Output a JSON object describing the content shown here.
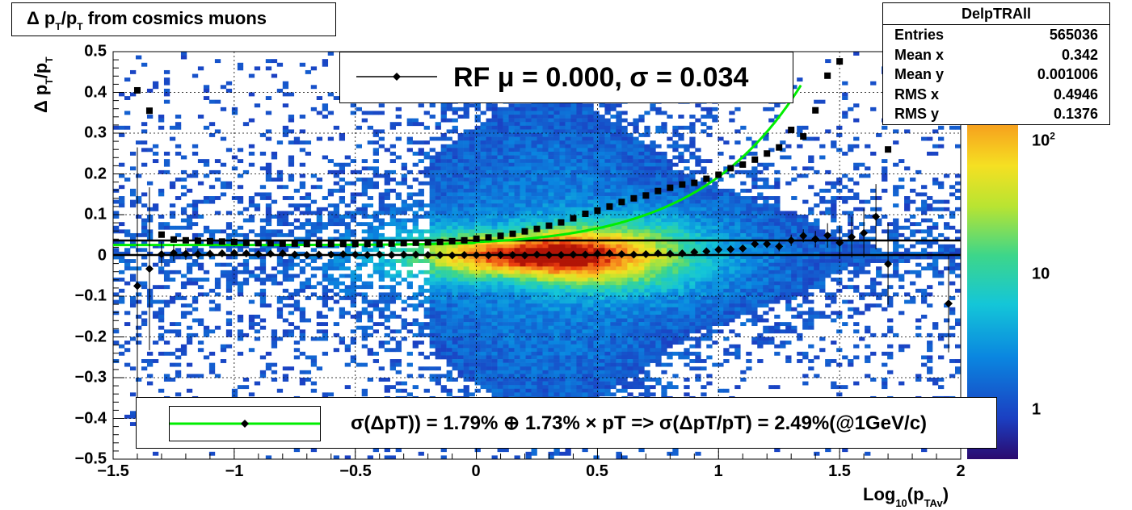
{
  "title": {
    "text_main": "Δ p",
    "sub1": "T",
    "slash": "/p",
    "sub2": "T",
    "rest": " from cosmics muons"
  },
  "stats": {
    "name": "DelpTRAll",
    "rows": [
      {
        "k": "Entries",
        "v": "565036"
      },
      {
        "k": "Mean x",
        "v": "0.342"
      },
      {
        "k": "Mean y",
        "v": "0.001006"
      },
      {
        "k": "RMS x",
        "v": "0.4946"
      },
      {
        "k": "RMS y",
        "v": "0.1376"
      }
    ]
  },
  "rf_legend": "RF μ =  0.000, σ =   0.034",
  "fit_legend": "σ(ΔpT)) =  1.79% ⊕  1.73% × pT => σ(ΔpT/pT) =  2.49%(@1GeV/c)",
  "axis": {
    "ylabel": {
      "a": "Δ p",
      "s1": "T",
      "b": "/p",
      "s2": "T"
    },
    "xlabel": {
      "a": "Log",
      "s1": "10",
      "b": "(p",
      "s2": "TAv",
      "c": ")"
    },
    "xticks": [
      "−1.5",
      "−1",
      "−0.5",
      "0",
      "0.5",
      "1",
      "1.5",
      "2"
    ],
    "yticks": [
      "0.5",
      "0.4",
      "0.3",
      "0.2",
      "0.1",
      "0",
      "−0.1",
      "−0.2",
      "−0.3",
      "−0.4",
      "−0.5"
    ],
    "zticks": [
      {
        "label": "10",
        "exp": "2"
      },
      {
        "label": "10",
        "exp": ""
      },
      {
        "label": "1",
        "exp": ""
      }
    ]
  },
  "colors": {
    "fit_curve": "#00ee00",
    "markers": "#000000",
    "lines": "#000000"
  },
  "chart_data": {
    "type": "heatmap",
    "title": "Δ pT/pT from cosmics muons",
    "xlabel": "Log10(pTAv)",
    "ylabel": "Δ pT/pT",
    "xlim": [
      -1.5,
      2.0
    ],
    "ylim": [
      -0.5,
      0.5
    ],
    "zscale": "log",
    "grid": true,
    "x": [
      -1.4,
      -1.35,
      -1.3,
      -1.25,
      -1.2,
      -1.15,
      -1.1,
      -1.05,
      -1.0,
      -0.95,
      -0.9,
      -0.85,
      -0.8,
      -0.75,
      -0.7,
      -0.65,
      -0.6,
      -0.55,
      -0.5,
      -0.45,
      -0.4,
      -0.35,
      -0.3,
      -0.25,
      -0.2,
      -0.15,
      -0.1,
      -0.05,
      0.0,
      0.05,
      0.1,
      0.15,
      0.2,
      0.25,
      0.3,
      0.35,
      0.4,
      0.45,
      0.5,
      0.55,
      0.6,
      0.65,
      0.7,
      0.75,
      0.8,
      0.85,
      0.9,
      0.95,
      1.0,
      1.05,
      1.1,
      1.15,
      1.2,
      1.25,
      1.3,
      1.35,
      1.4,
      1.45,
      1.5,
      1.55,
      1.6,
      1.65,
      1.7,
      1.75,
      1.8,
      1.85,
      1.9,
      1.95
    ],
    "series": [
      {
        "name": "mean",
        "values": [
          -0.075,
          -0.033,
          0.003,
          0.006,
          0.004,
          0.003,
          0.004,
          0.005,
          0.006,
          0.005,
          0.003,
          0.004,
          0.005,
          0.002,
          0.001,
          0.002,
          0.002,
          0.003,
          0.002,
          0.001,
          0.002,
          0.001,
          0.002,
          0.002,
          0.001,
          0.001,
          0.0,
          0.001,
          0.001,
          0.0,
          0.001,
          0.001,
          0.0,
          0.002,
          0.001,
          0.001,
          0.002,
          0.002,
          0.004,
          0.005,
          0.003,
          0.002,
          0.003,
          0.005,
          0.004,
          0.005,
          0.008,
          0.01,
          0.014,
          0.015,
          0.017,
          0.028,
          0.028,
          0.022,
          0.037,
          0.048,
          0.04,
          0.049,
          0.031,
          0.045,
          0.055,
          0.095,
          -0.021,
          null,
          null,
          null,
          null,
          -0.118
        ],
        "errors": [
          0.34,
          0.2,
          0.03,
          0.02,
          0.015,
          0.012,
          0.01,
          0.009,
          0.008,
          0.007,
          0.006,
          0.006,
          0.005,
          0.005,
          0.004,
          0.004,
          0.004,
          0.003,
          0.003,
          0.003,
          0.003,
          0.003,
          0.002,
          0.002,
          0.002,
          0.002,
          0.002,
          0.002,
          0.002,
          0.002,
          0.002,
          0.002,
          0.002,
          0.002,
          0.002,
          0.002,
          0.002,
          0.002,
          0.003,
          0.003,
          0.003,
          0.003,
          0.003,
          0.004,
          0.004,
          0.004,
          0.005,
          0.005,
          0.006,
          0.007,
          0.008,
          0.009,
          0.01,
          0.012,
          0.014,
          0.016,
          0.02,
          0.03,
          0.04,
          0.05,
          0.06,
          0.08,
          0.1,
          null,
          null,
          null,
          null,
          0.12
        ]
      },
      {
        "name": "sigma",
        "values": [
          0.405,
          0.355,
          0.051,
          0.039,
          0.037,
          0.036,
          0.035,
          0.034,
          0.033,
          0.031,
          0.03,
          0.03,
          0.029,
          0.029,
          0.028,
          0.028,
          0.028,
          0.028,
          0.028,
          0.028,
          0.028,
          0.029,
          0.03,
          0.031,
          0.032,
          0.033,
          0.035,
          0.037,
          0.041,
          0.044,
          0.048,
          0.053,
          0.059,
          0.065,
          0.073,
          0.081,
          0.091,
          0.102,
          0.11,
          0.12,
          0.131,
          0.14,
          0.147,
          0.158,
          0.166,
          0.174,
          0.178,
          0.188,
          0.198,
          0.214,
          0.223,
          0.235,
          0.25,
          0.265,
          0.308,
          0.292,
          0.356,
          0.441,
          0.476,
          null,
          null,
          null,
          0.26,
          null,
          null,
          null,
          null,
          null
        ]
      },
      {
        "name": "fit",
        "formula": "sqrt(1.79^2 + (1.73*pT)^2)%"
      }
    ],
    "fit_params": {
      "a_percent": 1.79,
      "b_percent": 1.73,
      "at_1GeV_percent": 2.49
    },
    "rf": {
      "mu": 0.0,
      "sigma": 0.034
    },
    "stats": {
      "entries": 565036,
      "mean_x": 0.342,
      "mean_y": 0.001006,
      "rms_x": 0.4946,
      "rms_y": 0.1376
    }
  }
}
